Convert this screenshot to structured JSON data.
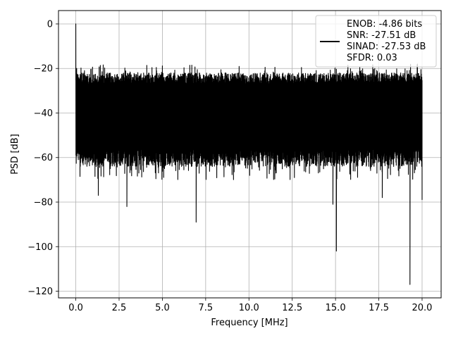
{
  "chart_data": {
    "type": "line",
    "xlabel": "Frequency [MHz]",
    "ylabel": "PSD [dB]",
    "xlim": [
      -1.0,
      21.1
    ],
    "ylim": [
      -123,
      6
    ],
    "x_ticks": [
      0.0,
      2.5,
      5.0,
      7.5,
      10.0,
      12.5,
      15.0,
      17.5,
      20.0
    ],
    "x_tick_labels": [
      "0.0",
      "2.5",
      "5.0",
      "7.5",
      "10.0",
      "12.5",
      "15.0",
      "17.5",
      "20.0"
    ],
    "y_ticks": [
      0,
      -20,
      -40,
      -60,
      -80,
      -100,
      -120
    ],
    "y_tick_labels": [
      "0",
      "−20",
      "−40",
      "−60",
      "−80",
      "−100",
      "−120"
    ],
    "grid": true,
    "legend_position": "top-right",
    "series": [
      {
        "name": "ENOB: -4.86 bits\nSNR: -27.51 dB\nSINAD: -27.53 dB\nSFDR: 0.03",
        "legend_lines": [
          "ENOB: -4.86 bits",
          "SNR: -27.51 dB",
          "SINAD: -27.53 dB",
          "SFDR: 0.03"
        ],
        "color": "#000000",
        "x_range": [
          0.0,
          20.0
        ],
        "noise_band": {
          "upper_typical": -22,
          "upper_max": -18,
          "lower_typical": -60,
          "lower_min": -70
        },
        "peaks": [
          {
            "x": 0.0,
            "y": 0
          },
          {
            "x": 0.05,
            "y": -20
          }
        ],
        "dips": [
          {
            "x": 1.3,
            "y": -77
          },
          {
            "x": 2.95,
            "y": -82
          },
          {
            "x": 6.95,
            "y": -89
          },
          {
            "x": 14.85,
            "y": -81
          },
          {
            "x": 15.05,
            "y": -102
          },
          {
            "x": 17.7,
            "y": -78
          },
          {
            "x": 19.3,
            "y": -117
          },
          {
            "x": 20.0,
            "y": -79
          }
        ]
      }
    ]
  }
}
